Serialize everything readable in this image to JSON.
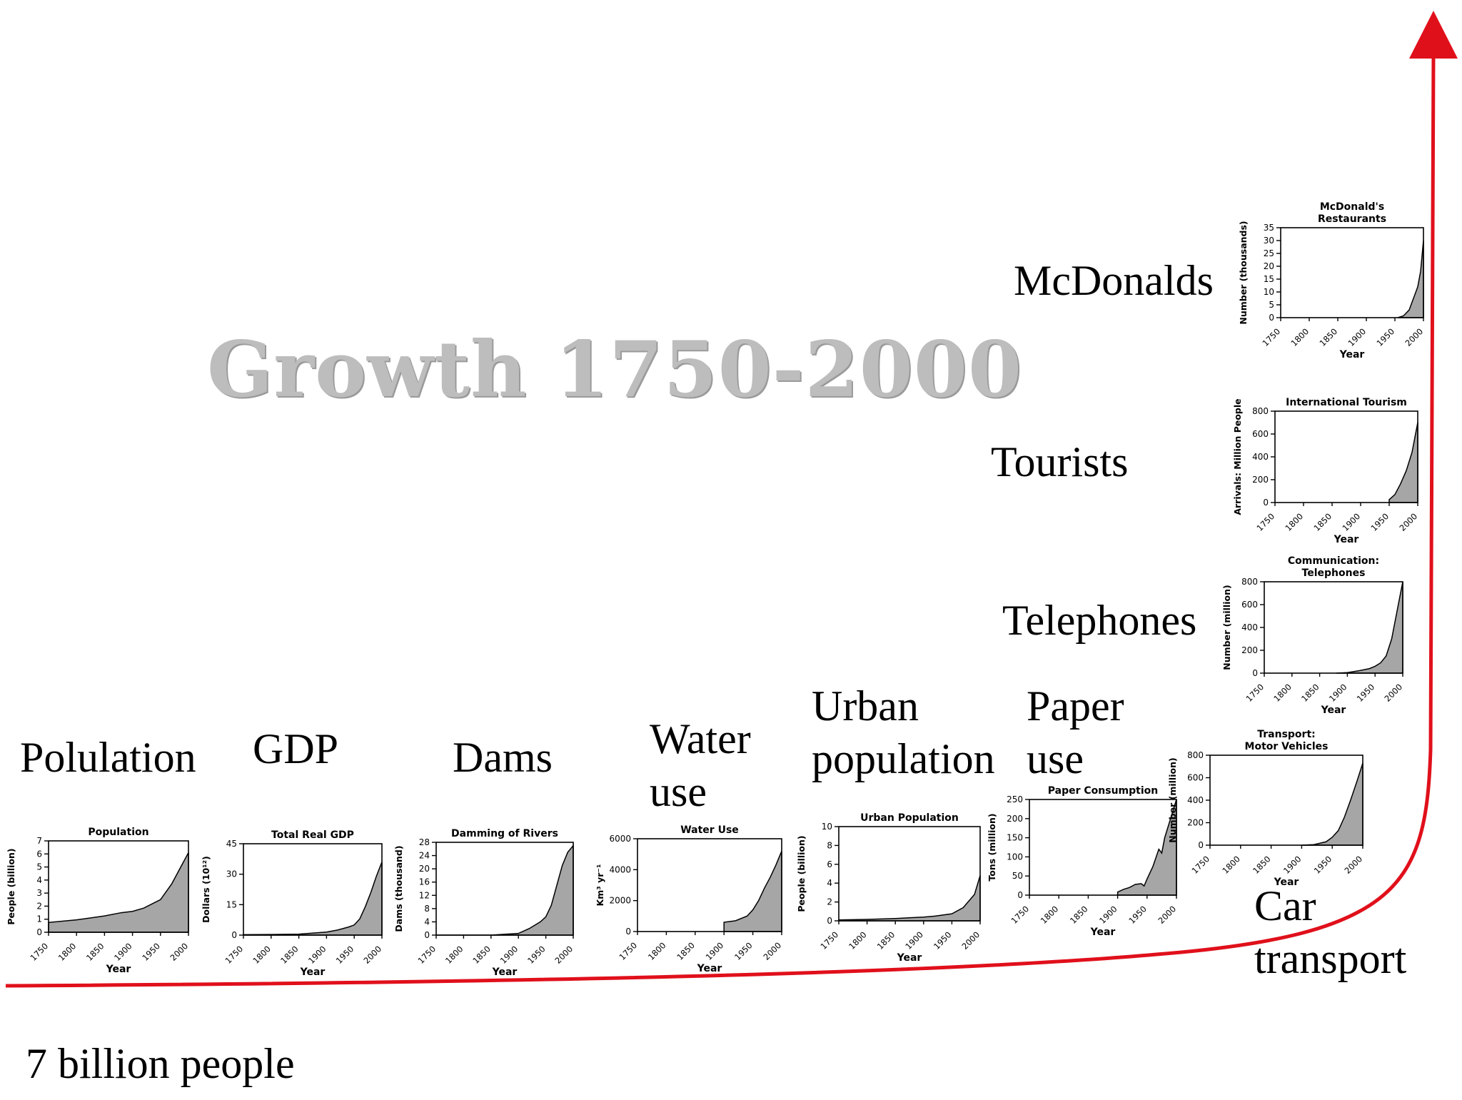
{
  "title": "Growth 1750-2000",
  "footer": "7 billion people",
  "colors": {
    "curve": "#e0101b",
    "fill": "#a6a6a6",
    "axis": "#000000"
  },
  "labels": [
    {
      "id": "population",
      "lines": [
        "Polulation"
      ]
    },
    {
      "id": "gdp",
      "lines": [
        "GDP"
      ]
    },
    {
      "id": "dams",
      "lines": [
        "Dams"
      ]
    },
    {
      "id": "water",
      "lines": [
        "Water",
        "use"
      ]
    },
    {
      "id": "urban",
      "lines": [
        "Urban",
        "population"
      ]
    },
    {
      "id": "paper",
      "lines": [
        "Paper",
        "use"
      ]
    },
    {
      "id": "car",
      "lines": [
        "Car",
        "transport"
      ]
    },
    {
      "id": "telephones",
      "lines": [
        "Telephones"
      ]
    },
    {
      "id": "tourists",
      "lines": [
        "Tourists"
      ]
    },
    {
      "id": "mcdonalds",
      "lines": [
        "McDonalds"
      ]
    }
  ],
  "chart_data": [
    {
      "type": "area",
      "title": "Population",
      "xlabel": "Year",
      "ylabel": "People (billion)",
      "xlim": [
        1750,
        2000
      ],
      "ylim": [
        0,
        7
      ],
      "yticks": [
        0,
        1,
        2,
        3,
        4,
        5,
        6,
        7
      ],
      "xticks": [
        1750,
        1800,
        1850,
        1900,
        1950,
        2000
      ],
      "x": [
        1750,
        1800,
        1850,
        1880,
        1900,
        1920,
        1950,
        1970,
        1990,
        2000
      ],
      "y": [
        0.75,
        0.95,
        1.25,
        1.5,
        1.6,
        1.85,
        2.5,
        3.7,
        5.3,
        6.1
      ]
    },
    {
      "type": "area",
      "title": "Total Real GDP",
      "xlabel": "Year",
      "ylabel": "Dollars (10¹²)",
      "xlim": [
        1750,
        2000
      ],
      "ylim": [
        0,
        45
      ],
      "yticks": [
        0,
        15,
        30,
        45
      ],
      "xticks": [
        1750,
        1800,
        1850,
        1900,
        1950,
        2000
      ],
      "x": [
        1750,
        1800,
        1850,
        1900,
        1920,
        1940,
        1950,
        1960,
        1970,
        1980,
        1990,
        2000
      ],
      "y": [
        0.2,
        0.3,
        0.5,
        1.5,
        2.5,
        4,
        5,
        8,
        14,
        21,
        29,
        36
      ]
    },
    {
      "type": "area",
      "title": "Damming of Rivers",
      "xlabel": "Year",
      "ylabel": "Dams (thousand)",
      "xlim": [
        1750,
        2000
      ],
      "ylim": [
        0,
        28
      ],
      "yticks": [
        0,
        4,
        8,
        12,
        16,
        20,
        24,
        28
      ],
      "xticks": [
        1750,
        1800,
        1850,
        1900,
        1950,
        2000
      ],
      "x": [
        1750,
        1850,
        1900,
        1920,
        1940,
        1950,
        1960,
        1970,
        1980,
        1990,
        2000
      ],
      "y": [
        0,
        0,
        0.5,
        2,
        4,
        5.5,
        9,
        15,
        21,
        25,
        27
      ]
    },
    {
      "type": "area",
      "title": "Water Use",
      "xlabel": "Year",
      "ylabel": "Km³ yr⁻¹",
      "xlim": [
        1750,
        2000
      ],
      "ylim": [
        0,
        6000
      ],
      "yticks": [
        0,
        2000,
        4000,
        6000
      ],
      "xticks": [
        1750,
        1800,
        1850,
        1900,
        1950,
        2000
      ],
      "x": [
        1900,
        1920,
        1940,
        1950,
        1960,
        1970,
        1980,
        1990,
        2000
      ],
      "y": [
        600,
        700,
        1000,
        1400,
        2000,
        2800,
        3500,
        4300,
        5200
      ]
    },
    {
      "type": "area",
      "title": "Urban Population",
      "xlabel": "Year",
      "ylabel": "People (billion)",
      "xlim": [
        1750,
        2000
      ],
      "ylim": [
        0,
        10
      ],
      "yticks": [
        0,
        2,
        4,
        6,
        8,
        10
      ],
      "xticks": [
        1750,
        1800,
        1850,
        1900,
        1950,
        2000
      ],
      "x": [
        1750,
        1800,
        1850,
        1900,
        1920,
        1950,
        1970,
        1990,
        2000
      ],
      "y": [
        0.1,
        0.15,
        0.25,
        0.4,
        0.5,
        0.75,
        1.4,
        2.8,
        4.8
      ]
    },
    {
      "type": "area",
      "title": "Paper Consumption",
      "xlabel": "Year",
      "ylabel": "Tons (million)",
      "xlim": [
        1750,
        2000
      ],
      "ylim": [
        0,
        250
      ],
      "yticks": [
        0,
        50,
        100,
        150,
        200,
        250
      ],
      "xticks": [
        1750,
        1800,
        1850,
        1900,
        1950,
        2000
      ],
      "x": [
        1900,
        1910,
        1920,
        1930,
        1940,
        1945,
        1950,
        1960,
        1970,
        1975,
        1980,
        1990,
        2000
      ],
      "y": [
        8,
        15,
        20,
        28,
        30,
        24,
        42,
        75,
        120,
        110,
        150,
        200,
        250
      ]
    },
    {
      "type": "area",
      "title": "Transport:\nMotor Vehicles",
      "xlabel": "Year",
      "ylabel": "Number (million)",
      "xlim": [
        1750,
        2000
      ],
      "ylim": [
        0,
        800
      ],
      "yticks": [
        0,
        200,
        400,
        600,
        800
      ],
      "xticks": [
        1750,
        1800,
        1850,
        1900,
        1950,
        2000
      ],
      "x": [
        1900,
        1920,
        1940,
        1950,
        1960,
        1970,
        1980,
        1990,
        2000
      ],
      "y": [
        0,
        5,
        30,
        70,
        130,
        250,
        400,
        560,
        730
      ]
    },
    {
      "type": "area",
      "title": "Communication:\nTelephones",
      "xlabel": "Year",
      "ylabel": "Number (million)",
      "xlim": [
        1750,
        2000
      ],
      "ylim": [
        0,
        800
      ],
      "yticks": [
        0,
        200,
        400,
        600,
        800
      ],
      "xticks": [
        1750,
        1800,
        1850,
        1900,
        1950,
        2000
      ],
      "x": [
        1880,
        1900,
        1920,
        1940,
        1950,
        1960,
        1970,
        1980,
        1990,
        2000
      ],
      "y": [
        0,
        5,
        20,
        40,
        60,
        90,
        150,
        300,
        550,
        800
      ]
    },
    {
      "type": "area",
      "title": "International Tourism",
      "xlabel": "Year",
      "ylabel": "Arrivals: Million People",
      "xlim": [
        1750,
        2000
      ],
      "ylim": [
        0,
        800
      ],
      "yticks": [
        0,
        200,
        400,
        600,
        800
      ],
      "xticks": [
        1750,
        1800,
        1850,
        1900,
        1950,
        2000
      ],
      "x": [
        1950,
        1960,
        1970,
        1980,
        1990,
        2000
      ],
      "y": [
        25,
        70,
        165,
        280,
        440,
        700
      ]
    },
    {
      "type": "area",
      "title": "McDonald's\nRestaurants",
      "xlabel": "Year",
      "ylabel": "Number (thousands)",
      "xlim": [
        1750,
        2000
      ],
      "ylim": [
        0,
        35
      ],
      "yticks": [
        0,
        5,
        10,
        15,
        20,
        25,
        30,
        35
      ],
      "xticks": [
        1750,
        1800,
        1850,
        1900,
        1950,
        2000
      ],
      "x": [
        1955,
        1965,
        1975,
        1980,
        1985,
        1990,
        1995,
        2000
      ],
      "y": [
        0,
        0.7,
        3,
        6,
        9,
        12,
        18,
        30
      ]
    }
  ]
}
